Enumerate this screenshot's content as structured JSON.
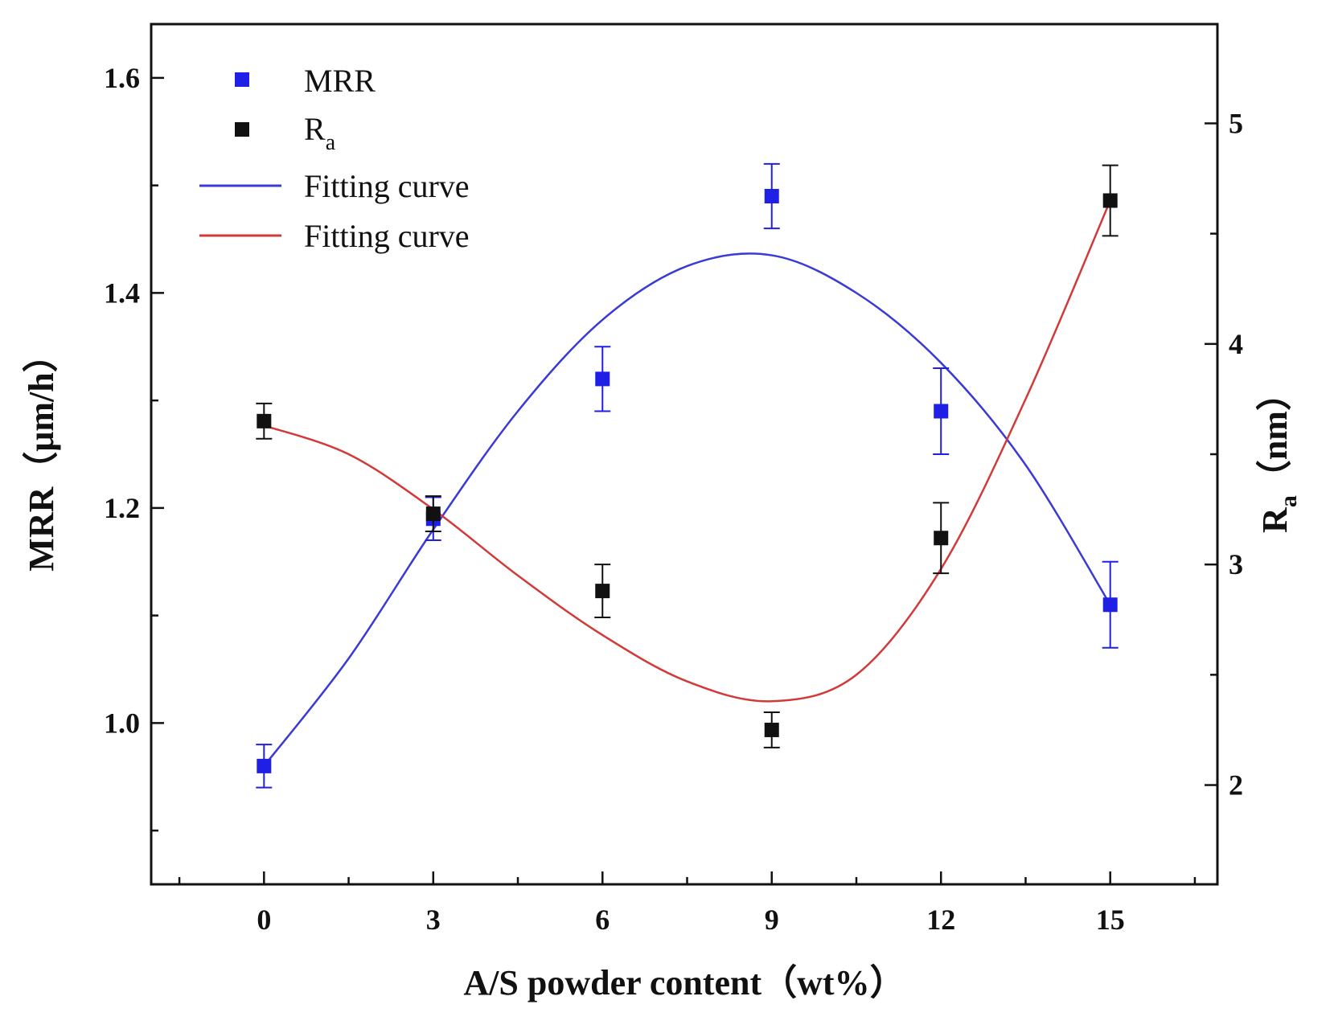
{
  "chart_data": {
    "type": "scatter",
    "title": "",
    "xlabel": "A/S powder content（wt%）",
    "ylabel_left": {
      "main": "MRR",
      "unit": "（μm/h）"
    },
    "ylabel_right": {
      "main": "R",
      "sub": "a",
      "unit": "（nm）"
    },
    "xlim": [
      -2.0,
      16.9
    ],
    "ylim_left": [
      0.85,
      1.65
    ],
    "ylim_right": [
      1.55,
      5.45
    ],
    "x_ticks": [
      0,
      3,
      6,
      9,
      12,
      15
    ],
    "x_tick_labels": [
      "0",
      "3",
      "6",
      "9",
      "12",
      "15"
    ],
    "y_left_ticks": [
      1.0,
      1.2,
      1.4,
      1.6
    ],
    "y_left_tick_labels": [
      "1.0",
      "1.2",
      "1.4",
      "1.6"
    ],
    "y_right_ticks": [
      2,
      3,
      4,
      5
    ],
    "y_right_tick_labels": [
      "2",
      "3",
      "4",
      "5"
    ],
    "series": [
      {
        "name": "MRR",
        "axis": "left",
        "color": "#1f1fe6",
        "x": [
          0,
          3,
          6,
          9,
          12,
          15
        ],
        "values": [
          0.96,
          1.19,
          1.32,
          1.49,
          1.29,
          1.11
        ],
        "errors": [
          0.02,
          0.02,
          0.03,
          0.03,
          0.04,
          0.04
        ]
      },
      {
        "name": "R",
        "name_sub": "a",
        "axis": "right",
        "color": "#111111",
        "x": [
          0,
          3,
          6,
          9,
          12,
          15
        ],
        "values": [
          3.65,
          3.23,
          2.88,
          2.25,
          3.12,
          4.65
        ],
        "errors": [
          0.08,
          0.08,
          0.12,
          0.08,
          0.16,
          0.16
        ]
      }
    ],
    "fit_curves": [
      {
        "name": "Fitting curve",
        "axis": "left",
        "color": "#3a3ad6",
        "x": [
          0,
          1.5,
          3,
          4.5,
          6,
          7.5,
          9,
          10.5,
          12,
          13.5,
          15
        ],
        "values": [
          0.96,
          1.06,
          1.18,
          1.29,
          1.375,
          1.425,
          1.435,
          1.4,
          1.335,
          1.24,
          1.11
        ]
      },
      {
        "name": "Fitting curve",
        "axis": "right",
        "color": "#d23a3a",
        "x": [
          0,
          1.5,
          3,
          4.5,
          6,
          7.5,
          9,
          10.5,
          12,
          13.5,
          15
        ],
        "values": [
          3.63,
          3.5,
          3.25,
          2.95,
          2.68,
          2.47,
          2.38,
          2.5,
          2.98,
          3.75,
          4.65
        ]
      }
    ],
    "legend": {
      "position": "top-left",
      "entries": [
        {
          "label": "MRR",
          "sub": "",
          "kind": "marker",
          "color": "#1f1fe6"
        },
        {
          "label": "R",
          "sub": "a",
          "kind": "marker",
          "color": "#111111"
        },
        {
          "label": "Fitting curve",
          "sub": "",
          "kind": "line",
          "color": "#3a3ad6"
        },
        {
          "label": "Fitting curve",
          "sub": "",
          "kind": "line",
          "color": "#d23a3a"
        }
      ]
    }
  }
}
